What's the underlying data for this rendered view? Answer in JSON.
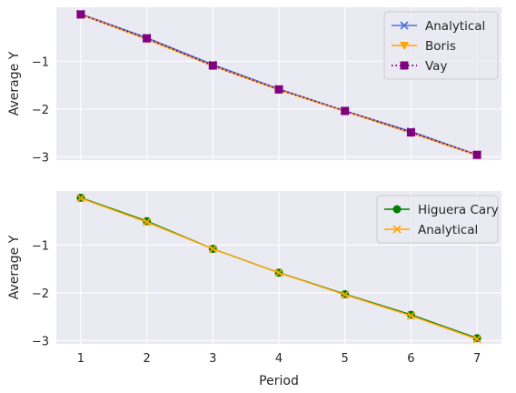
{
  "chart_data": [
    {
      "type": "line",
      "ylabel": "Average Y",
      "yticks": [
        -1,
        -2,
        -3
      ],
      "ylim": [
        -3.07,
        0.13
      ],
      "xlim": [
        0.63,
        7.37
      ],
      "grid": true,
      "legend": "top-right",
      "x": [
        1,
        2,
        3,
        4,
        5,
        6,
        7
      ],
      "series": [
        {
          "name": "Analytical",
          "color": "#4c72d8",
          "marker": "x",
          "linestyle": "solid",
          "values": [
            -0.01,
            -0.51,
            -1.07,
            -1.58,
            -2.04,
            -2.47,
            -2.96
          ]
        },
        {
          "name": "Boris",
          "color": "#ffa500",
          "marker": "triangle-down",
          "linestyle": "solid",
          "values": [
            -0.02,
            -0.54,
            -1.1,
            -1.6,
            -2.05,
            -2.5,
            -2.97
          ]
        },
        {
          "name": "Vay",
          "color": "#800080",
          "marker": "square",
          "linestyle": "dotted",
          "values": [
            -0.02,
            -0.52,
            -1.09,
            -1.59,
            -2.04,
            -2.49,
            -2.96
          ]
        }
      ]
    },
    {
      "type": "line",
      "xlabel": "Period",
      "ylabel": "Average Y",
      "xticks": [
        1,
        2,
        3,
        4,
        5,
        6,
        7
      ],
      "yticks": [
        -1,
        -2,
        -3
      ],
      "ylim": [
        -3.07,
        0.13
      ],
      "xlim": [
        0.63,
        7.37
      ],
      "grid": true,
      "legend": "top-right",
      "x": [
        1,
        2,
        3,
        4,
        5,
        6,
        7
      ],
      "series": [
        {
          "name": "Higuera Cary",
          "color": "#008000",
          "marker": "circle",
          "linestyle": "solid",
          "values": [
            -0.01,
            -0.5,
            -1.08,
            -1.58,
            -2.03,
            -2.46,
            -2.95
          ]
        },
        {
          "name": "Analytical",
          "color": "#ffa500",
          "marker": "x",
          "linestyle": "solid",
          "values": [
            -0.02,
            -0.52,
            -1.08,
            -1.58,
            -2.04,
            -2.48,
            -2.97
          ]
        }
      ]
    }
  ]
}
